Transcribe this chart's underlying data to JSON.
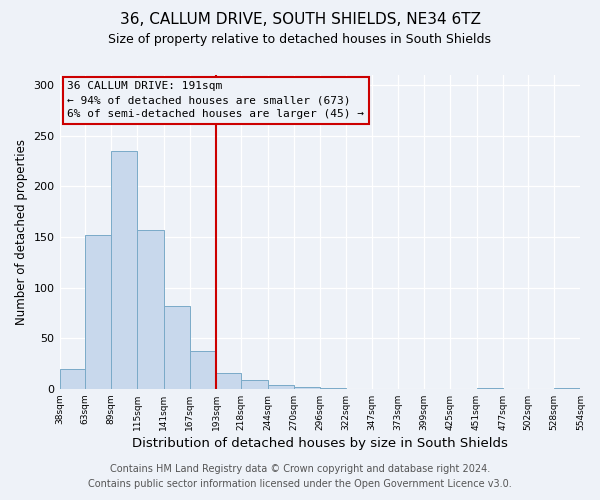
{
  "title": "36, CALLUM DRIVE, SOUTH SHIELDS, NE34 6TZ",
  "subtitle": "Size of property relative to detached houses in South Shields",
  "xlabel": "Distribution of detached houses by size in South Shields",
  "ylabel": "Number of detached properties",
  "bin_edges": [
    38,
    63,
    89,
    115,
    141,
    167,
    193,
    218,
    244,
    270,
    296,
    322,
    347,
    373,
    399,
    425,
    451,
    477,
    502,
    528,
    554
  ],
  "counts": [
    20,
    152,
    235,
    157,
    82,
    37,
    16,
    9,
    4,
    2,
    1,
    0,
    0,
    0,
    0,
    0,
    1,
    0,
    0,
    1
  ],
  "bar_facecolor": "#c8d8ec",
  "bar_edgecolor": "#7aaac8",
  "vline_x": 193,
  "vline_color": "#cc0000",
  "annotation_box_edgecolor": "#cc0000",
  "annotation_lines": [
    "36 CALLUM DRIVE: 191sqm",
    "← 94% of detached houses are smaller (673)",
    "6% of semi-detached houses are larger (45) →"
  ],
  "annotation_fontsize": 8,
  "ylim": [
    0,
    310
  ],
  "xlim": [
    38,
    554
  ],
  "yticks": [
    0,
    50,
    100,
    150,
    200,
    250,
    300
  ],
  "footer_line1": "Contains HM Land Registry data © Crown copyright and database right 2024.",
  "footer_line2": "Contains public sector information licensed under the Open Government Licence v3.0.",
  "background_color": "#eef2f8",
  "title_fontsize": 11,
  "subtitle_fontsize": 9,
  "xlabel_fontsize": 9.5,
  "ylabel_fontsize": 8.5,
  "footer_fontsize": 7
}
